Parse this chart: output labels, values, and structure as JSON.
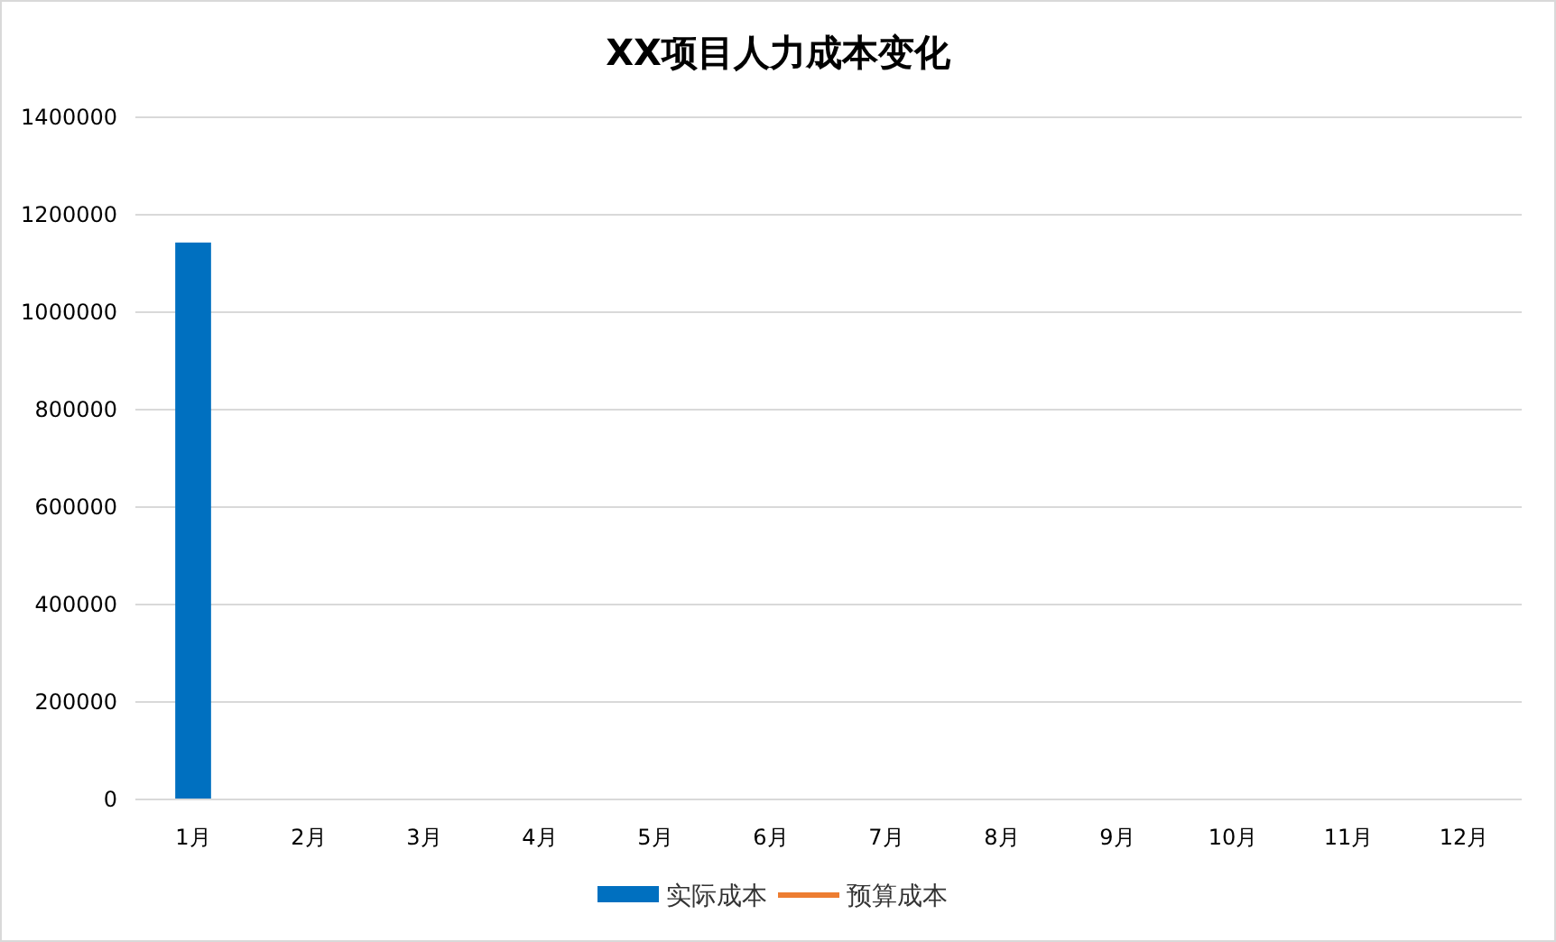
{
  "chart_data": {
    "type": "bar",
    "title": "XX项目人力成本变化",
    "categories": [
      "1月",
      "2月",
      "3月",
      "4月",
      "5月",
      "6月",
      "7月",
      "8月",
      "9月",
      "10月",
      "11月",
      "12月"
    ],
    "series": [
      {
        "name": "实际成本",
        "color": "#0070c0",
        "values": [
          1143000,
          null,
          null,
          null,
          null,
          null,
          null,
          null,
          null,
          null,
          null,
          null
        ]
      },
      {
        "name": "预算成本",
        "type": "line",
        "color": "#ed7d31",
        "values": [
          null,
          null,
          null,
          null,
          null,
          null,
          null,
          null,
          null,
          null,
          null,
          null
        ]
      }
    ],
    "ylim": [
      0,
      1400000
    ],
    "yticks": [
      0,
      200000,
      400000,
      600000,
      800000,
      1000000,
      1200000,
      1400000
    ],
    "grid": "y",
    "legend": "bottom"
  }
}
